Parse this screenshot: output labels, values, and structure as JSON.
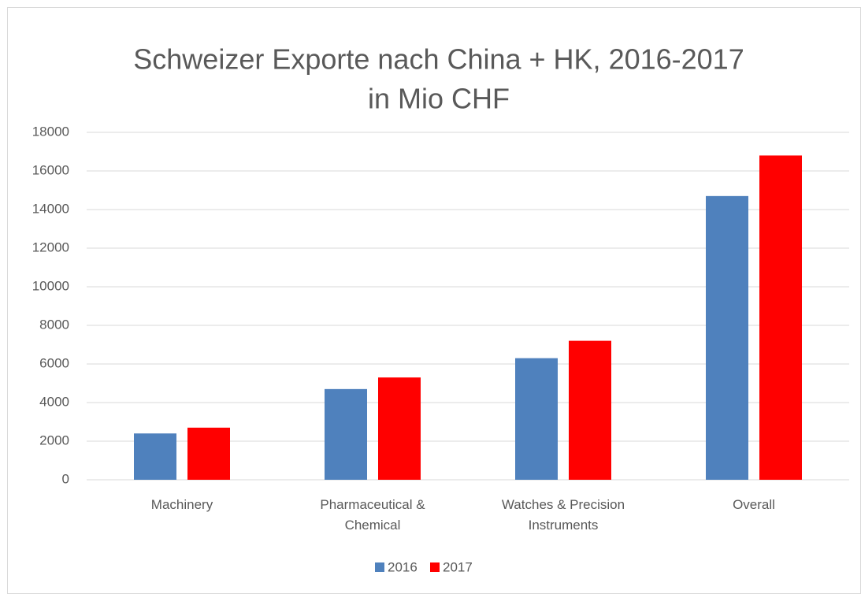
{
  "chart_data": {
    "type": "bar",
    "title": "Schweizer Exporte nach China + HK, 2016-2017",
    "subtitle": "in Mio CHF",
    "categories": [
      "Machinery",
      "Pharmaceutical & Chemical",
      "Watches & Precision Instruments",
      "Overall"
    ],
    "series": [
      {
        "name": "2016",
        "color": "#4f81bd",
        "values": [
          2400,
          4700,
          6300,
          14700
        ]
      },
      {
        "name": "2017",
        "color": "#ff0000",
        "values": [
          2700,
          5300,
          7200,
          16800
        ]
      }
    ],
    "ylim": [
      0,
      18000
    ],
    "yticks": [
      0,
      2000,
      4000,
      6000,
      8000,
      10000,
      12000,
      14000,
      16000,
      18000
    ],
    "grid": true,
    "legend": "bottom"
  }
}
